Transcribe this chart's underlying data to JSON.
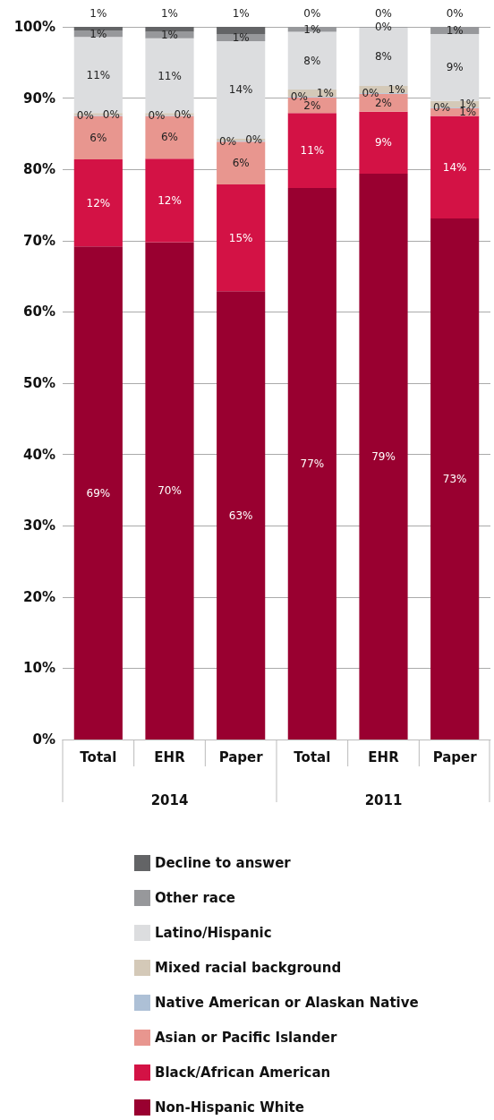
{
  "chart_data": {
    "type": "bar",
    "stacked": true,
    "categories": [
      "Total",
      "EHR",
      "Paper",
      "Total",
      "EHR",
      "Paper"
    ],
    "annotations": [
      "2014",
      "2011"
    ],
    "ylim": [
      0,
      100
    ],
    "yticks": [
      {
        "value": 0,
        "label": "0%"
      },
      {
        "value": 10,
        "label": "10%"
      },
      {
        "value": 20,
        "label": "20%"
      },
      {
        "value": 30,
        "label": "30%"
      },
      {
        "value": 40,
        "label": "40%"
      },
      {
        "value": 50,
        "label": "50%"
      },
      {
        "value": 60,
        "label": "60%"
      },
      {
        "value": 70,
        "label": "70%"
      },
      {
        "value": 80,
        "label": "80%"
      },
      {
        "value": 90,
        "label": "90%"
      },
      {
        "value": 100,
        "label": "100%"
      }
    ],
    "grid": "y",
    "legend": "bottom",
    "series": [
      {
        "name": "Non-Hispanic White",
        "color": "#990030",
        "values": [
          69.2,
          69.8,
          62.9,
          77.4,
          79.4,
          73.1
        ],
        "value_labels": [
          "69%",
          "70%",
          "63%",
          "77%",
          "79%",
          "73%"
        ]
      },
      {
        "name": "Black/African American",
        "color": "#d31245",
        "values": [
          12.2,
          11.7,
          15.0,
          10.5,
          8.7,
          14.4
        ],
        "value_labels": [
          "12%",
          "12%",
          "15%",
          "11%",
          "9%",
          "14%"
        ]
      },
      {
        "name": "Asian or Pacific Islander",
        "color": "#e8968f",
        "values": [
          6.1,
          6.0,
          6.0,
          2.2,
          2.5,
          1.1
        ],
        "value_labels": [
          "6%",
          "6%",
          "6%",
          "2%",
          "2%",
          "1%"
        ]
      },
      {
        "name": "Native American or Alaskan Native",
        "color": "#adc0d6",
        "values": [
          0.1,
          0.1,
          0.1,
          0.1,
          0.1,
          0.1
        ],
        "value_labels": [
          "0%",
          "0%",
          "0%",
          "0%",
          "0%",
          "0%"
        ]
      },
      {
        "name": "Mixed racial background",
        "color": "#d4c9b8",
        "values": [
          0.3,
          0.3,
          0.3,
          1.0,
          1.0,
          0.9
        ],
        "value_labels": [
          "0%",
          "0%",
          "0%",
          "1%",
          "1%",
          "1%"
        ]
      },
      {
        "name": "Latino/Hispanic",
        "color": "#dcdddf",
        "values": [
          10.7,
          10.5,
          13.7,
          8.1,
          8.2,
          9.4
        ],
        "value_labels": [
          "11%",
          "11%",
          "14%",
          "8%",
          "8%",
          "9%"
        ]
      },
      {
        "name": "Other race",
        "color": "#97989b",
        "values": [
          0.9,
          0.9,
          1.0,
          0.7,
          0.1,
          1.0
        ],
        "value_labels": [
          "1%",
          "1%",
          "1%",
          "1%",
          "0%",
          "1%"
        ]
      },
      {
        "name": "Decline to answer",
        "color": "#636466",
        "values": [
          0.5,
          0.7,
          1.0,
          0,
          0,
          0
        ],
        "value_labels": [
          "1%",
          "1%",
          "1%",
          "0%",
          "0%",
          "0%"
        ]
      }
    ]
  }
}
